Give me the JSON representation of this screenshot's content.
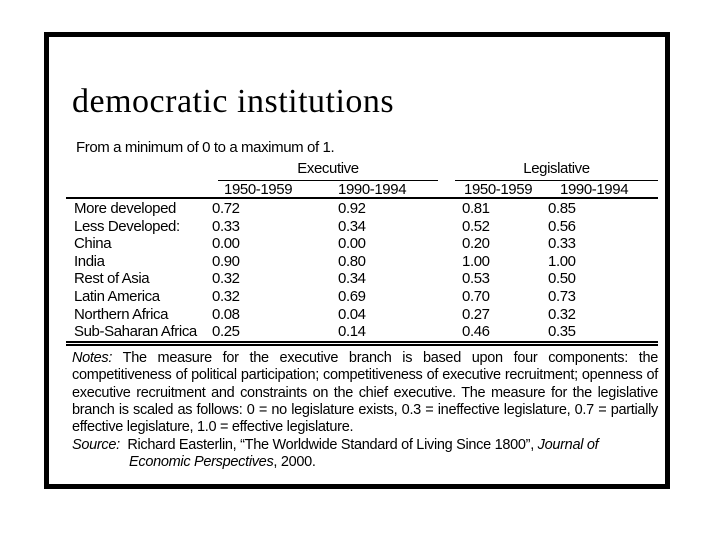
{
  "slide": {
    "title": "democratic institutions",
    "subtitle": "From a minimum of 0 to a maximum of 1."
  },
  "table": {
    "group_headers": [
      "Executive",
      "Legislative"
    ],
    "year_headers": [
      "1950-1959",
      "1990-1994",
      "1950-1959",
      "1990-1994"
    ],
    "rows": [
      {
        "label": "More developed",
        "values": [
          "0.72",
          "0.92",
          "0.81",
          "0.85"
        ]
      },
      {
        "label": "Less Developed:",
        "values": [
          "0.33",
          "0.34",
          "0.52",
          "0.56"
        ]
      },
      {
        "label": "China",
        "values": [
          "0.00",
          "0.00",
          "0.20",
          "0.33"
        ]
      },
      {
        "label": "India",
        "values": [
          "0.90",
          "0.80",
          "1.00",
          "1.00"
        ]
      },
      {
        "label": "Rest of Asia",
        "values": [
          "0.32",
          "0.34",
          "0.53",
          "0.50"
        ]
      },
      {
        "label": "Latin America",
        "values": [
          "0.32",
          "0.69",
          "0.70",
          "0.73"
        ]
      },
      {
        "label": "Northern Africa",
        "values": [
          "0.08",
          "0.04",
          "0.27",
          "0.32"
        ]
      },
      {
        "label": "Sub-Saharan Africa",
        "values": [
          "0.25",
          "0.14",
          "0.46",
          "0.35"
        ]
      }
    ]
  },
  "notes": {
    "label": "Notes:",
    "text": "The measure for the executive branch is based upon four components: the competitiveness of political participation; competitiveness of executive recruitment; openness of executive recruitment and constraints on the chief executive.  The measure for the legislative branch is scaled as follows: 0 = no legislature exists, 0.3 = ineffective legislature, 0.7 = partially effective legislature, 1.0 = effective legislature."
  },
  "source": {
    "label": "Source:",
    "text_before_journal": "Richard Easterlin, “The Worldwide Standard of Living Since 1800”, ",
    "journal": "Journal of Economic Perspectives",
    "text_after_journal": ", 2000."
  },
  "colors": {
    "text": "#000000",
    "background": "#ffffff",
    "slide_border": "#000000"
  }
}
